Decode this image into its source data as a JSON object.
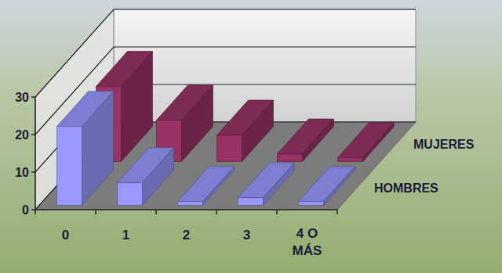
{
  "chart_data": {
    "type": "bar",
    "categories": [
      "0",
      "1",
      "2",
      "3",
      "4 O MÁS"
    ],
    "series": [
      {
        "name": "HOMBRES",
        "color": "#9999ff",
        "values": [
          21,
          6,
          1,
          2,
          1
        ]
      },
      {
        "name": "MUJERES",
        "color": "#993366",
        "values": [
          20,
          11,
          7,
          2,
          1
        ]
      }
    ],
    "ylim": [
      0,
      30
    ],
    "yticks": [
      0,
      10,
      20,
      30
    ],
    "grid": true,
    "legend": "right"
  }
}
